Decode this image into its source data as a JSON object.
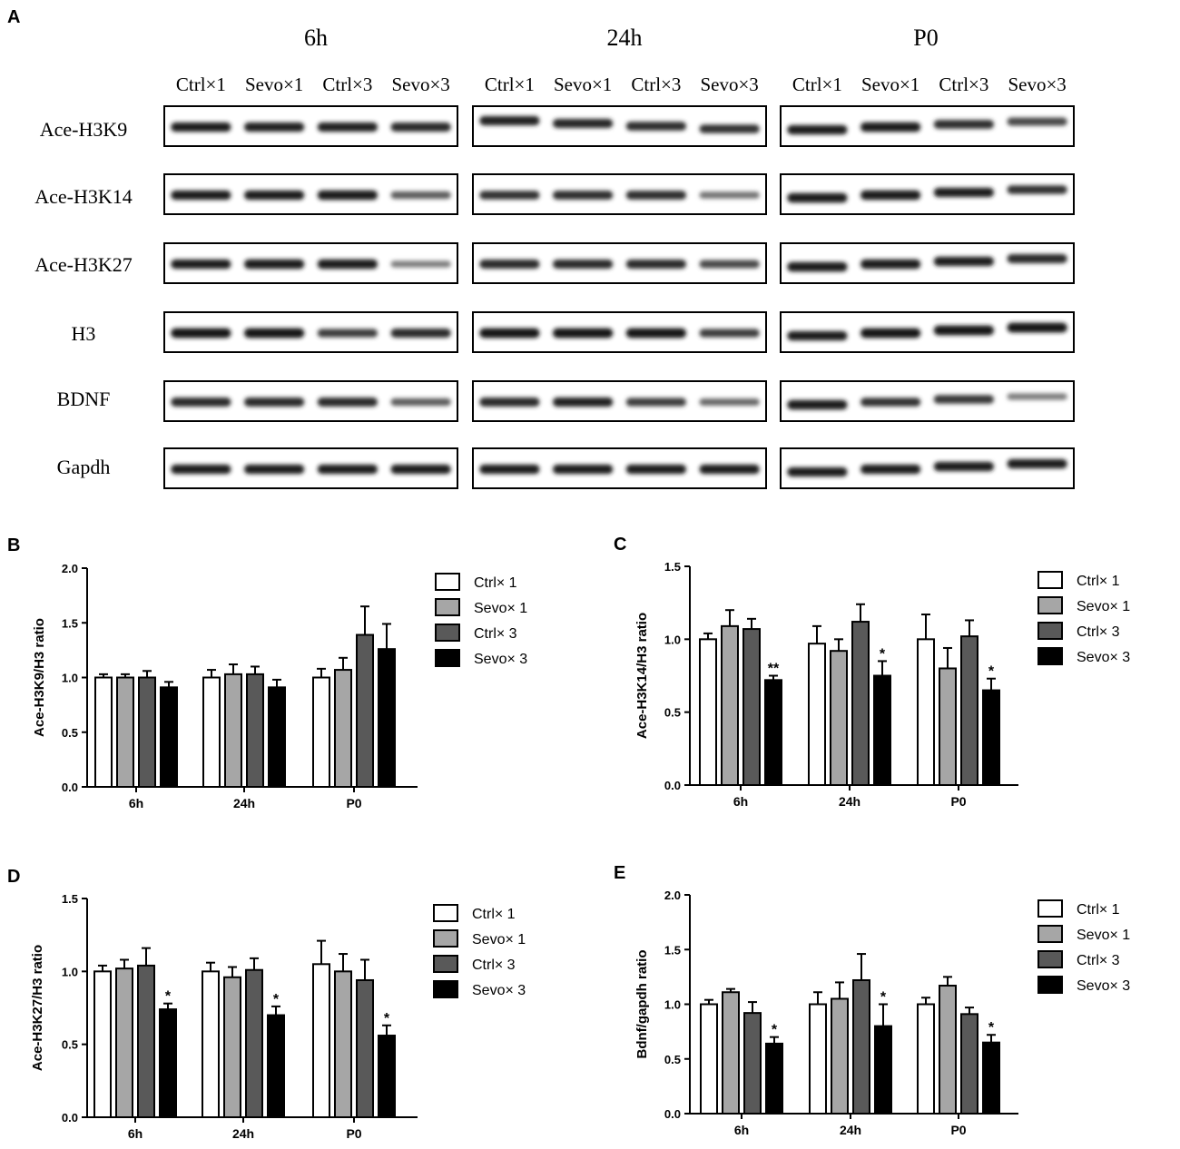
{
  "panel_letters": [
    "A",
    "B",
    "C",
    "D",
    "E"
  ],
  "blot": {
    "timepoints": [
      "6h",
      "24h",
      "P0"
    ],
    "lanes": [
      "Ctrl×1",
      "Sevo×1",
      "Ctrl×3",
      "Sevo×3"
    ],
    "rows": [
      "Ace-H3K9",
      "Ace-H3K14",
      "Ace-H3K27",
      "H3",
      "BDNF",
      "Gapdh"
    ],
    "intensity": [
      [
        [
          0.9,
          0.88,
          0.88,
          0.85
        ],
        [
          0.88,
          0.86,
          0.82,
          0.8
        ],
        [
          0.9,
          0.92,
          0.82,
          0.7
        ]
      ],
      [
        [
          0.9,
          0.9,
          0.92,
          0.6
        ],
        [
          0.8,
          0.82,
          0.82,
          0.5
        ],
        [
          0.92,
          0.92,
          0.9,
          0.8
        ]
      ],
      [
        [
          0.9,
          0.92,
          0.92,
          0.45
        ],
        [
          0.85,
          0.85,
          0.85,
          0.7
        ],
        [
          0.92,
          0.92,
          0.9,
          0.85
        ]
      ],
      [
        [
          0.95,
          0.95,
          0.75,
          0.85
        ],
        [
          0.95,
          0.95,
          0.95,
          0.75
        ],
        [
          0.9,
          0.95,
          0.95,
          0.95
        ]
      ],
      [
        [
          0.85,
          0.85,
          0.85,
          0.6
        ],
        [
          0.85,
          0.88,
          0.75,
          0.55
        ],
        [
          0.92,
          0.8,
          0.78,
          0.45
        ]
      ],
      [
        [
          0.9,
          0.9,
          0.9,
          0.9
        ],
        [
          0.9,
          0.9,
          0.9,
          0.9
        ],
        [
          0.9,
          0.9,
          0.9,
          0.9
        ]
      ]
    ]
  },
  "legend": [
    "Ctrl× 1",
    "Sevo× 1",
    "Ctrl× 3",
    "Sevo× 3"
  ],
  "colors": [
    "#ffffff",
    "#a6a6a6",
    "#595959",
    "#000000"
  ],
  "chart_data": [
    {
      "panel": "B",
      "type": "bar",
      "categories": [
        "6h",
        "24h",
        "P0"
      ],
      "ylabel": "Ace-H3K9/H3 ratio",
      "ylim": [
        0,
        2.0
      ],
      "yticks": [
        "0.0",
        "0.5",
        "1.0",
        "1.5",
        "2.0"
      ],
      "series": [
        {
          "name": "Ctrl× 1",
          "values": [
            1.0,
            1.0,
            1.0
          ],
          "errors": [
            0.03,
            0.07,
            0.08
          ]
        },
        {
          "name": "Sevo× 1",
          "values": [
            1.0,
            1.03,
            1.07
          ],
          "errors": [
            0.03,
            0.09,
            0.11
          ]
        },
        {
          "name": "Ctrl× 3",
          "values": [
            1.0,
            1.03,
            1.39
          ],
          "errors": [
            0.06,
            0.07,
            0.26
          ]
        },
        {
          "name": "Sevo× 3",
          "values": [
            0.91,
            0.91,
            1.26
          ],
          "errors": [
            0.05,
            0.07,
            0.23
          ]
        }
      ],
      "significance": [
        [
          "",
          "",
          "",
          ""
        ],
        [
          "",
          "",
          "",
          ""
        ],
        [
          "",
          "",
          "",
          ""
        ]
      ]
    },
    {
      "panel": "C",
      "type": "bar",
      "categories": [
        "6h",
        "24h",
        "P0"
      ],
      "ylabel": "Ace-H3K14/H3 ratio",
      "ylim": [
        0,
        1.5
      ],
      "yticks": [
        "0.0",
        "0.5",
        "1.0",
        "1.5"
      ],
      "series": [
        {
          "name": "Ctrl× 1",
          "values": [
            1.0,
            0.97,
            1.0
          ],
          "errors": [
            0.04,
            0.12,
            0.17
          ]
        },
        {
          "name": "Sevo× 1",
          "values": [
            1.09,
            0.92,
            0.8
          ],
          "errors": [
            0.11,
            0.08,
            0.14
          ]
        },
        {
          "name": "Ctrl× 3",
          "values": [
            1.07,
            1.12,
            1.02
          ],
          "errors": [
            0.07,
            0.12,
            0.11
          ]
        },
        {
          "name": "Sevo× 3",
          "values": [
            0.72,
            0.75,
            0.65
          ],
          "errors": [
            0.03,
            0.1,
            0.08
          ]
        }
      ],
      "significance": [
        [
          "",
          "",
          "",
          "**"
        ],
        [
          "",
          "",
          "",
          "*"
        ],
        [
          "",
          "",
          "",
          "*"
        ]
      ]
    },
    {
      "panel": "D",
      "type": "bar",
      "categories": [
        "6h",
        "24h",
        "P0"
      ],
      "ylabel": "Ace-H3K27/H3 ratio",
      "ylim": [
        0,
        1.5
      ],
      "yticks": [
        "0.0",
        "0.5",
        "1.0",
        "1.5"
      ],
      "series": [
        {
          "name": "Ctrl× 1",
          "values": [
            1.0,
            1.0,
            1.05
          ],
          "errors": [
            0.04,
            0.06,
            0.16
          ]
        },
        {
          "name": "Sevo× 1",
          "values": [
            1.02,
            0.96,
            1.0
          ],
          "errors": [
            0.06,
            0.07,
            0.12
          ]
        },
        {
          "name": "Ctrl× 3",
          "values": [
            1.04,
            1.01,
            0.94
          ],
          "errors": [
            0.12,
            0.08,
            0.14
          ]
        },
        {
          "name": "Sevo× 3",
          "values": [
            0.74,
            0.7,
            0.56
          ],
          "errors": [
            0.04,
            0.06,
            0.07
          ]
        }
      ],
      "significance": [
        [
          "",
          "",
          "",
          "*"
        ],
        [
          "",
          "",
          "",
          "*"
        ],
        [
          "",
          "",
          "",
          "*"
        ]
      ]
    },
    {
      "panel": "E",
      "type": "bar",
      "categories": [
        "6h",
        "24h",
        "P0"
      ],
      "ylabel": "Bdnf/gapdh ratio",
      "ylim": [
        0,
        2.0
      ],
      "yticks": [
        "0.0",
        "0.5",
        "1.0",
        "1.5",
        "2.0"
      ],
      "series": [
        {
          "name": "Ctrl× 1",
          "values": [
            1.0,
            1.0,
            1.0
          ],
          "errors": [
            0.04,
            0.11,
            0.06
          ]
        },
        {
          "name": "Sevo× 1",
          "values": [
            1.11,
            1.05,
            1.17
          ],
          "errors": [
            0.03,
            0.15,
            0.08
          ]
        },
        {
          "name": "Ctrl× 3",
          "values": [
            0.92,
            1.22,
            0.91
          ],
          "errors": [
            0.1,
            0.24,
            0.06
          ]
        },
        {
          "name": "Sevo× 3",
          "values": [
            0.64,
            0.8,
            0.65
          ],
          "errors": [
            0.06,
            0.2,
            0.07
          ]
        }
      ],
      "significance": [
        [
          "",
          "",
          "",
          "*"
        ],
        [
          "",
          "",
          "",
          "*"
        ],
        [
          "",
          "",
          "",
          "*"
        ]
      ]
    }
  ]
}
